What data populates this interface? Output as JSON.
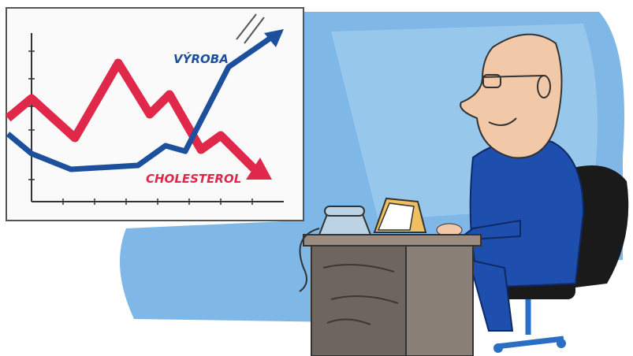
{
  "chart": {
    "series": [
      {
        "name": "VÝROBA"
      },
      {
        "name": "CHOLESTEROL"
      }
    ]
  }
}
